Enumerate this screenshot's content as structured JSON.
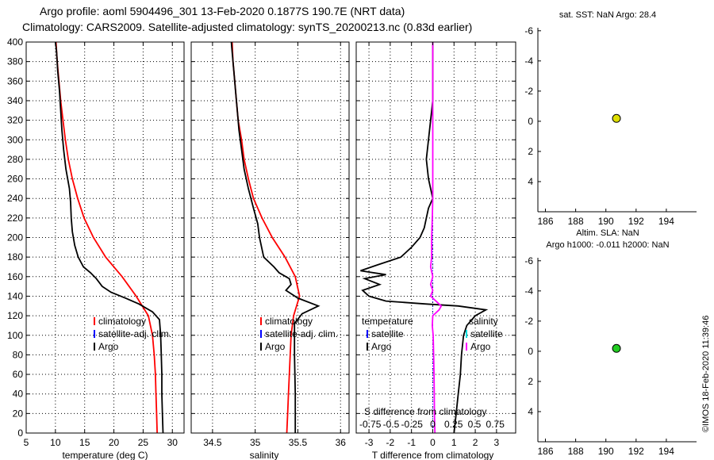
{
  "header": {
    "line1": "Argo profile: aoml 5904496_301 13-Feb-2020 0.1877S 190.7E (NRT data)",
    "line2": "Climatology: CARS2009. Satellite-adjusted climatology: synTS_20200213.nc (0.83d earlier)"
  },
  "footer": {
    "credit": "©IMOS 18-Feb-2020 11:39:46"
  },
  "colors": {
    "climatology": "#ff0000",
    "satellite": "#0000ff",
    "argo": "#000000",
    "s_satellite": "#00dddd",
    "s_argo": "#ff00ff",
    "sst_dot": "#dddd00",
    "sla_dot": "#22cc22"
  },
  "chart_data": [
    {
      "id": "temperature",
      "type": "line",
      "xlabel": "temperature (deg C)",
      "ylabel": "depth",
      "xlim": [
        5,
        32
      ],
      "ylim": [
        400,
        0
      ],
      "xticks": [
        5,
        10,
        15,
        20,
        25,
        30
      ],
      "yticks": [
        0,
        20,
        40,
        60,
        80,
        100,
        120,
        140,
        160,
        180,
        200,
        220,
        240,
        260,
        280,
        300,
        320,
        340,
        360,
        380,
        400
      ],
      "grid": true,
      "legend": {
        "position": "right-middle",
        "entries": [
          "climatology",
          "satellite-adj. clim.",
          "Argo"
        ]
      },
      "series": [
        {
          "name": "climatology",
          "color": "#ff0000",
          "points": [
            [
              27.4,
              0
            ],
            [
              27.3,
              20
            ],
            [
              27.2,
              40
            ],
            [
              27.1,
              60
            ],
            [
              26.9,
              80
            ],
            [
              26.6,
              100
            ],
            [
              25.9,
              120
            ],
            [
              23.8,
              140
            ],
            [
              21.4,
              160
            ],
            [
              18.6,
              180
            ],
            [
              16.5,
              200
            ],
            [
              14.9,
              220
            ],
            [
              13.8,
              240
            ],
            [
              12.9,
              260
            ],
            [
              12.2,
              280
            ],
            [
              11.7,
              300
            ],
            [
              11.3,
              320
            ],
            [
              10.9,
              340
            ],
            [
              10.6,
              360
            ],
            [
              10.3,
              380
            ],
            [
              10.1,
              400
            ]
          ]
        },
        {
          "name": "Argo",
          "color": "#000000",
          "points": [
            [
              28.4,
              0
            ],
            [
              28.3,
              20
            ],
            [
              28.2,
              40
            ],
            [
              28.2,
              60
            ],
            [
              28.1,
              80
            ],
            [
              28.0,
              100
            ],
            [
              27.8,
              116
            ],
            [
              26.6,
              124
            ],
            [
              24.3,
              132
            ],
            [
              22.0,
              138
            ],
            [
              19.5,
              144
            ],
            [
              18.0,
              150
            ],
            [
              17.0,
              158
            ],
            [
              16.0,
              164
            ],
            [
              14.8,
              170
            ],
            [
              13.9,
              180
            ],
            [
              13.3,
              192
            ],
            [
              12.9,
              206
            ],
            [
              12.7,
              220
            ],
            [
              12.6,
              236
            ],
            [
              12.4,
              250
            ],
            [
              11.8,
              270
            ],
            [
              11.4,
              290
            ],
            [
              11.1,
              310
            ],
            [
              10.9,
              330
            ],
            [
              10.7,
              350
            ],
            [
              10.4,
              370
            ],
            [
              10.2,
              390
            ],
            [
              10.0,
              400
            ]
          ]
        }
      ]
    },
    {
      "id": "salinity",
      "type": "line",
      "xlabel": "salinity",
      "xlim": [
        34.25,
        36.1
      ],
      "ylim": [
        400,
        0
      ],
      "xticks": [
        34.5,
        35,
        35.5,
        36
      ],
      "xticklabels": [
        "34.5",
        "35",
        "35.5",
        "36"
      ],
      "grid": true,
      "legend": {
        "position": "right-middle",
        "entries": [
          "climatology",
          "satellite-adj. clim.",
          "Argo"
        ]
      },
      "series": [
        {
          "name": "climatology",
          "color": "#ff0000",
          "points": [
            [
              35.37,
              0
            ],
            [
              35.38,
              20
            ],
            [
              35.39,
              40
            ],
            [
              35.4,
              60
            ],
            [
              35.41,
              80
            ],
            [
              35.42,
              100
            ],
            [
              35.45,
              120
            ],
            [
              35.52,
              140
            ],
            [
              35.47,
              160
            ],
            [
              35.35,
              180
            ],
            [
              35.2,
              200
            ],
            [
              35.08,
              220
            ],
            [
              34.98,
              240
            ],
            [
              34.92,
              260
            ],
            [
              34.87,
              280
            ],
            [
              34.84,
              300
            ],
            [
              34.8,
              320
            ],
            [
              34.78,
              340
            ],
            [
              34.76,
              360
            ],
            [
              34.74,
              380
            ],
            [
              34.73,
              400
            ]
          ]
        },
        {
          "name": "Argo",
          "color": "#000000",
          "points": [
            [
              35.47,
              0
            ],
            [
              35.47,
              40
            ],
            [
              35.46,
              80
            ],
            [
              35.46,
              112
            ],
            [
              35.55,
              122
            ],
            [
              35.74,
              130
            ],
            [
              35.5,
              138
            ],
            [
              35.36,
              146
            ],
            [
              35.42,
              152
            ],
            [
              35.4,
              158
            ],
            [
              35.28,
              164
            ],
            [
              35.22,
              170
            ],
            [
              35.1,
              180
            ],
            [
              35.05,
              200
            ],
            [
              35.03,
              214
            ],
            [
              34.98,
              230
            ],
            [
              34.92,
              250
            ],
            [
              34.87,
              270
            ],
            [
              34.84,
              290
            ],
            [
              34.81,
              310
            ],
            [
              34.79,
              330
            ],
            [
              34.77,
              350
            ],
            [
              34.75,
              370
            ],
            [
              34.73,
              390
            ],
            [
              34.72,
              400
            ]
          ]
        }
      ]
    },
    {
      "id": "difference",
      "type": "line",
      "xlabel": "T difference from climatology",
      "xlim": [
        -3.6,
        3.9
      ],
      "ylim": [
        400,
        0
      ],
      "xticks": [
        -3,
        -2,
        -1,
        0,
        1,
        2,
        3
      ],
      "grid": true,
      "s_axis": {
        "label": "S difference from climatology",
        "ticks": [
          -0.75,
          -0.5,
          -0.25,
          0,
          0.25,
          0.5,
          0.75
        ],
        "ticklabels": [
          "-0.75",
          "-0.5",
          "-0.25",
          "0",
          "0.25",
          "0.5",
          "0.75"
        ]
      },
      "legend": {
        "temperature_title": "temperature",
        "salinity_title": "salinity",
        "entries": [
          "satellite",
          "Argo",
          "satellite",
          "Argo"
        ]
      },
      "series": [
        {
          "name": "T difference (Argo)",
          "color": "#000000",
          "points": [
            [
              1.0,
              0
            ],
            [
              1.1,
              20
            ],
            [
              1.2,
              40
            ],
            [
              1.3,
              60
            ],
            [
              1.35,
              80
            ],
            [
              1.45,
              100
            ],
            [
              1.6,
              110
            ],
            [
              2.0,
              120
            ],
            [
              2.5,
              126
            ],
            [
              1.2,
              130
            ],
            [
              -0.3,
              132
            ],
            [
              -2.2,
              135
            ],
            [
              -3.0,
              140
            ],
            [
              -3.3,
              146
            ],
            [
              -2.5,
              152
            ],
            [
              -3.2,
              158
            ],
            [
              -2.2,
              162
            ],
            [
              -3.4,
              166
            ],
            [
              -2.6,
              172
            ],
            [
              -1.5,
              180
            ],
            [
              -1.0,
              190
            ],
            [
              -0.6,
              200
            ],
            [
              -0.4,
              210
            ],
            [
              -0.3,
              220
            ],
            [
              -0.2,
              230
            ],
            [
              0.0,
              240
            ],
            [
              -0.2,
              260
            ],
            [
              -0.3,
              280
            ],
            [
              -0.2,
              300
            ],
            [
              -0.1,
              320
            ],
            [
              0.0,
              340
            ],
            [
              0.0,
              360
            ],
            [
              0.0,
              380
            ],
            [
              0.0,
              400
            ]
          ]
        },
        {
          "name": "S difference (Argo)",
          "color": "#ff00ff",
          "points": [
            [
              0.1,
              0
            ],
            [
              0.08,
              20
            ],
            [
              0.07,
              40
            ],
            [
              0.06,
              60
            ],
            [
              0.04,
              80
            ],
            [
              0.02,
              100
            ],
            [
              -0.02,
              110
            ],
            [
              0.0,
              120
            ],
            [
              0.3,
              126
            ],
            [
              0.4,
              130
            ],
            [
              0.1,
              136
            ],
            [
              -0.1,
              140
            ],
            [
              0.0,
              146
            ],
            [
              -0.1,
              152
            ],
            [
              0.0,
              160
            ],
            [
              -0.1,
              170
            ],
            [
              -0.05,
              180
            ],
            [
              -0.05,
              200
            ],
            [
              -0.02,
              220
            ],
            [
              0.0,
              240
            ],
            [
              0.0,
              260
            ],
            [
              0.0,
              280
            ],
            [
              0.0,
              300
            ],
            [
              0.0,
              320
            ],
            [
              0.0,
              340
            ],
            [
              0.0,
              360
            ],
            [
              0.0,
              380
            ],
            [
              0.0,
              400
            ]
          ]
        }
      ]
    },
    {
      "id": "sst",
      "type": "scatter",
      "title": "sat. SST: NaN Argo: 28.4",
      "xlim": [
        185.5,
        196
      ],
      "ylim": [
        -6.2,
        6
      ],
      "xticks": [
        186,
        188,
        190,
        192,
        194
      ],
      "yticks": [
        -6,
        -4,
        -2,
        0,
        2,
        4
      ],
      "points": [
        {
          "x": 190.7,
          "y": -0.19,
          "color": "#dddd00"
        }
      ]
    },
    {
      "id": "sla",
      "type": "scatter",
      "title": "Altim. SLA: NaN",
      "subtitle": "Argo h1000: -0.011 h2000: NaN",
      "xlim": [
        185.5,
        196
      ],
      "ylim": [
        -6.2,
        6
      ],
      "xticks": [
        186,
        188,
        190,
        192,
        194
      ],
      "yticks": [
        -6,
        -4,
        -2,
        0,
        2,
        4
      ],
      "points": [
        {
          "x": 190.7,
          "y": -0.19,
          "color": "#22cc22"
        }
      ]
    }
  ]
}
